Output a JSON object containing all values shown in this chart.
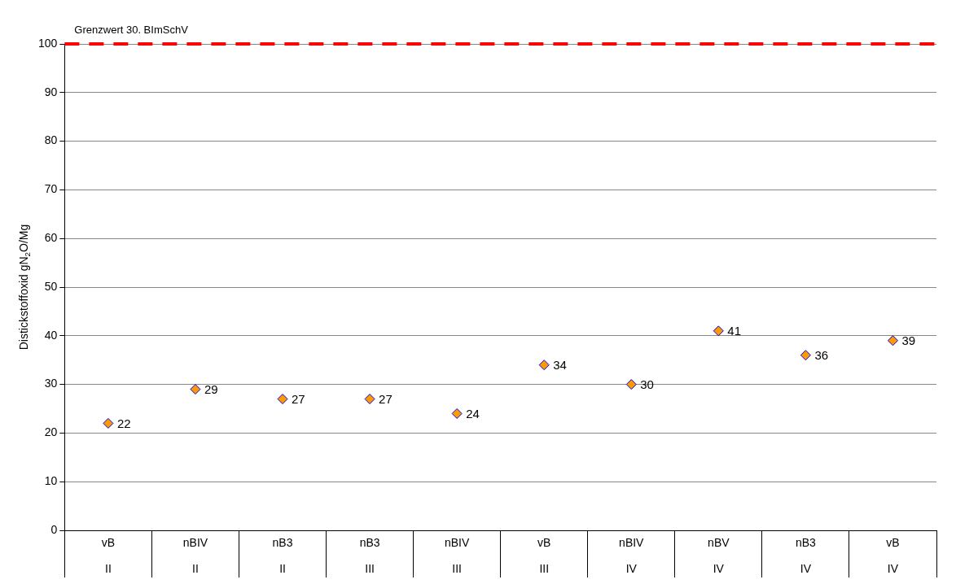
{
  "chart_data": {
    "type": "scatter",
    "ylabel": "Distickstoffoxid gN$_{2}$O/Mg",
    "categories": [
      "vB\nII",
      "nBIV\nII",
      "nB3\nII",
      "nB3\nIII",
      "nBIV\nIII",
      "vB\nIII",
      "nBIV\nIV",
      "nBV\nIV",
      "nB3\nIV",
      "vB\nIV"
    ],
    "series": [
      {
        "color": "#ff9900",
        "values": [
          22,
          29,
          27,
          27,
          24,
          34,
          30,
          41,
          36,
          39
        ]
      }
    ],
    "ylim": [
      0,
      100
    ],
    "yticks": [
      0,
      10,
      20,
      30,
      40,
      50,
      60,
      70,
      80,
      90,
      100
    ],
    "grid": "y",
    "marker": "diamond",
    "data_labels": true,
    "legend": false,
    "ref_lines": [
      {
        "axis": "y",
        "value": 100,
        "label": "Grenzwert 30. BImSchV",
        "color": "#ff0000",
        "line_style": "dashed"
      }
    ]
  }
}
